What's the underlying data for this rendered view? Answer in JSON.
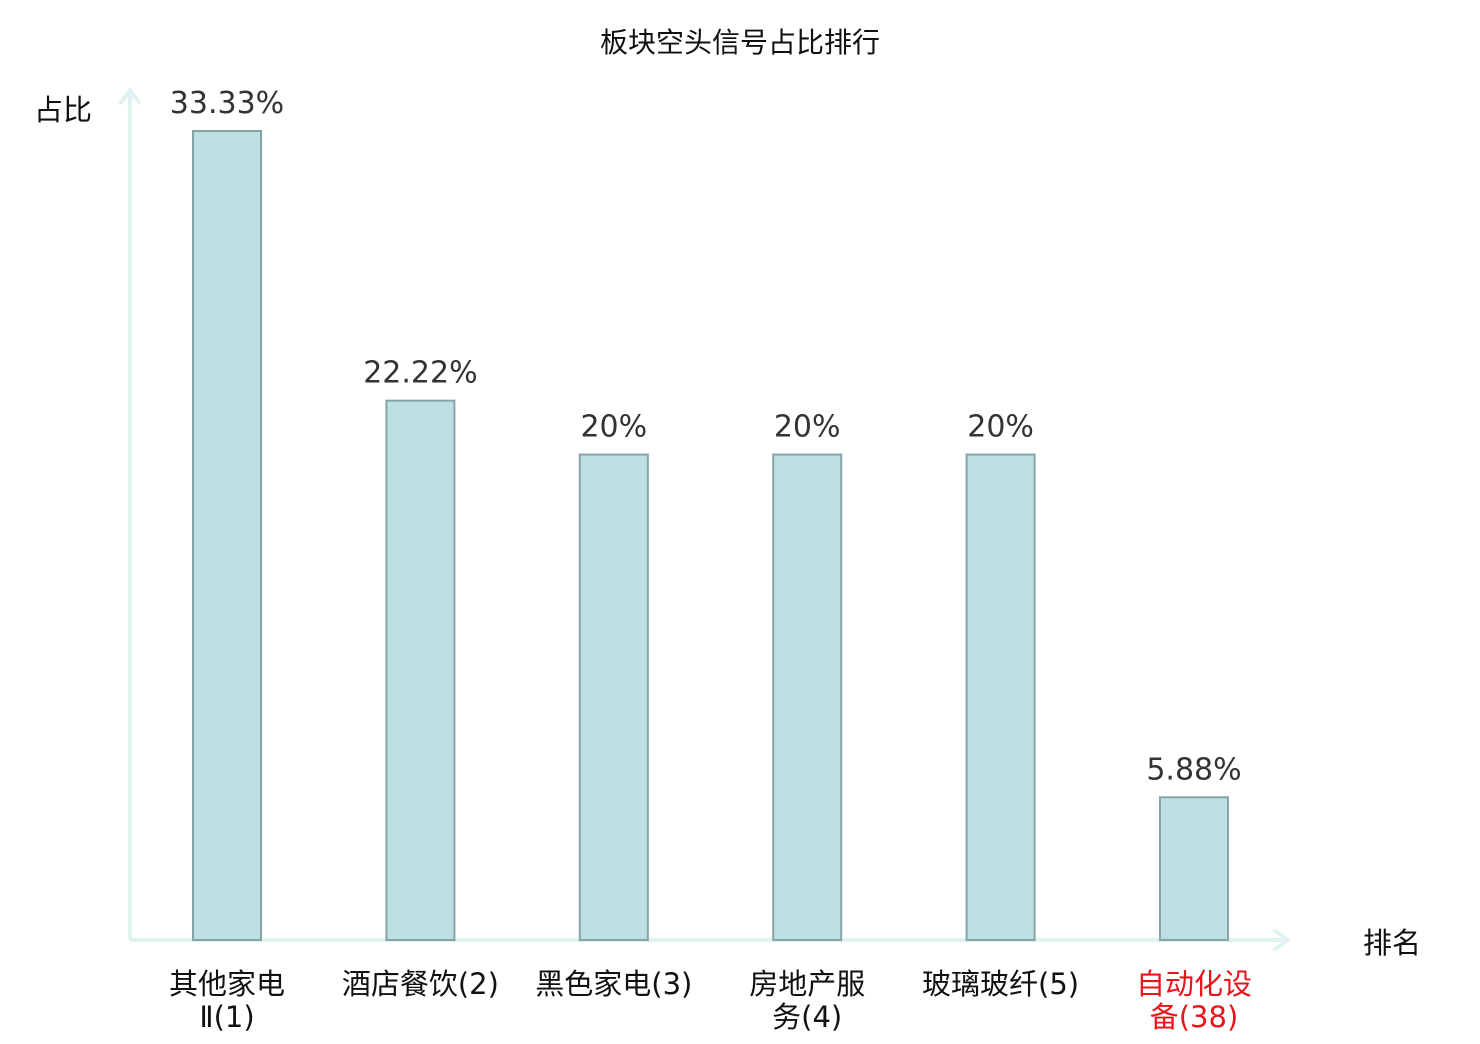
{
  "chart_data": {
    "type": "bar",
    "title": "板块空头信号占比排行",
    "ylabel": "占比",
    "xlabel": "排名",
    "categories": [
      {
        "lines": [
          "其他家电",
          "Ⅱ(1)"
        ],
        "highlight": false
      },
      {
        "lines": [
          "酒店餐饮(2)"
        ],
        "highlight": false
      },
      {
        "lines": [
          "黑色家电(3)"
        ],
        "highlight": false
      },
      {
        "lines": [
          "房地产服",
          "务(4)"
        ],
        "highlight": false
      },
      {
        "lines": [
          "玻璃玻纤(5)"
        ],
        "highlight": false
      },
      {
        "lines": [
          "自动化设",
          "备(38)"
        ],
        "highlight": true
      }
    ],
    "values": [
      33.33,
      22.22,
      20,
      20,
      20,
      5.88
    ],
    "value_labels": [
      "33.33%",
      "22.22%",
      "20%",
      "20%",
      "20%",
      "5.88%"
    ],
    "ylim": [
      0,
      33.33
    ],
    "grid": false,
    "colors": {
      "bar_fill": "#bde0e3",
      "bar_stroke": "#86a3a7",
      "axis": "#e0f3f1",
      "text": "#333333",
      "highlight": "#e8151b"
    }
  }
}
